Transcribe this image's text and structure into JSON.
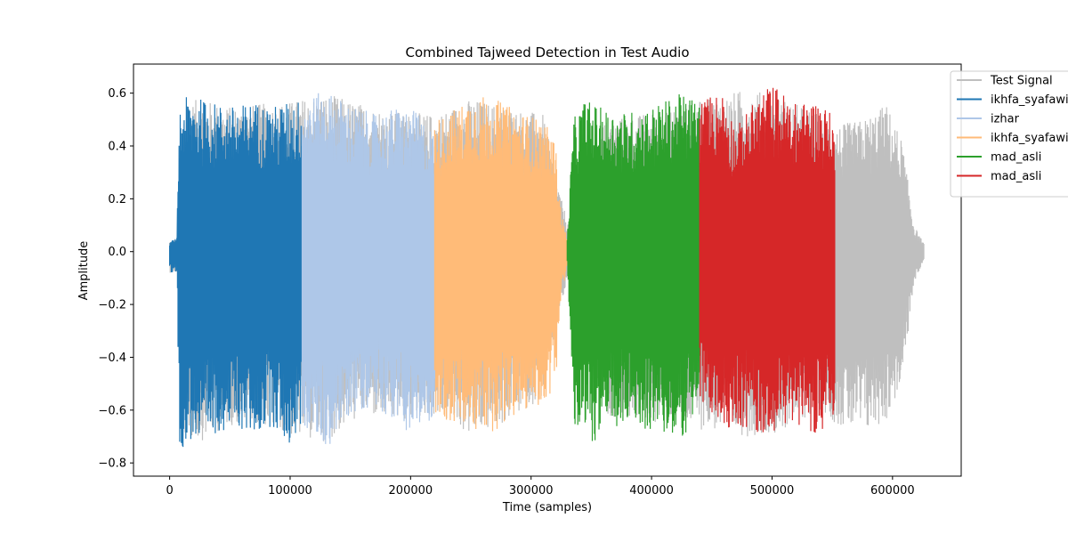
{
  "chart_data": {
    "type": "line",
    "title": "Combined Tajweed Detection in Test Audio",
    "xlabel": "Time (samples)",
    "ylabel": "Amplitude",
    "xlim": [
      -30000,
      657000
    ],
    "ylim": [
      -0.85,
      0.71
    ],
    "xticks": [
      0,
      100000,
      200000,
      300000,
      400000,
      500000,
      600000
    ],
    "xtick_labels": [
      "0",
      "100000",
      "200000",
      "300000",
      "400000",
      "500000",
      "600000"
    ],
    "yticks": [
      -0.8,
      -0.6,
      -0.4,
      -0.2,
      0.0,
      0.2,
      0.4,
      0.6
    ],
    "ytick_labels": [
      "−0.8",
      "−0.6",
      "−0.4",
      "−0.2",
      "0.0",
      "0.2",
      "0.4",
      "0.6"
    ],
    "grid": false,
    "legend_placement": "upper-right (outside)",
    "series": [
      {
        "name": "Test Signal",
        "color": "#bfbfbf",
        "x": [
          0,
          7000,
          12000,
          25000,
          50000,
          75000,
          100000,
          130000,
          160000,
          190000,
          220000,
          250000,
          280000,
          310000,
          325000,
          335000,
          360000,
          390000,
          420000,
          450000,
          480000,
          510000,
          540000,
          555000,
          575000,
          595000,
          608000,
          618000,
          626000
        ],
        "upper": [
          0.04,
          0.05,
          0.56,
          0.58,
          0.55,
          0.56,
          0.57,
          0.6,
          0.56,
          0.53,
          0.52,
          0.58,
          0.55,
          0.52,
          0.2,
          0.05,
          0.5,
          0.52,
          0.55,
          0.58,
          0.62,
          0.58,
          0.52,
          0.48,
          0.5,
          0.56,
          0.42,
          0.1,
          0.03
        ],
        "lower": [
          -0.08,
          -0.08,
          -0.7,
          -0.72,
          -0.66,
          -0.65,
          -0.7,
          -0.72,
          -0.62,
          -0.65,
          -0.62,
          -0.7,
          -0.65,
          -0.55,
          -0.2,
          -0.05,
          -0.62,
          -0.64,
          -0.66,
          -0.68,
          -0.7,
          -0.68,
          -0.6,
          -0.66,
          -0.7,
          -0.64,
          -0.5,
          -0.12,
          -0.03
        ]
      },
      {
        "name": "ikhfa_syafawi",
        "color": "#1f77b4",
        "x_range": [
          0,
          110000
        ],
        "x": [
          0,
          6000,
          8000,
          12000,
          20000,
          26000,
          40000,
          55000,
          70000,
          85000,
          100000,
          110000
        ],
        "upper": [
          0.04,
          0.05,
          0.55,
          0.58,
          0.6,
          0.58,
          0.56,
          0.55,
          0.57,
          0.55,
          0.57,
          0.58
        ],
        "lower": [
          -0.08,
          -0.08,
          -0.72,
          -0.76,
          -0.7,
          -0.78,
          -0.68,
          -0.67,
          -0.7,
          -0.66,
          -0.74,
          -0.66
        ]
      },
      {
        "name": "izhar",
        "color": "#aec7e8",
        "x_range": [
          110000,
          220000
        ],
        "x": [
          110000,
          130000,
          150000,
          170000,
          190000,
          205000,
          220000
        ],
        "upper": [
          0.58,
          0.61,
          0.56,
          0.52,
          0.55,
          0.53,
          0.45
        ],
        "lower": [
          -0.66,
          -0.75,
          -0.62,
          -0.58,
          -0.66,
          -0.7,
          -0.62
        ]
      },
      {
        "name": "ikhfa_syafawi",
        "color": "#ffbb78",
        "x_range": [
          220000,
          330000
        ],
        "x": [
          220000,
          240000,
          252000,
          270000,
          290000,
          310000,
          320000,
          325000,
          330000
        ],
        "upper": [
          0.5,
          0.55,
          0.6,
          0.58,
          0.53,
          0.5,
          0.42,
          0.15,
          0.05
        ],
        "lower": [
          -0.62,
          -0.67,
          -0.69,
          -0.68,
          -0.62,
          -0.58,
          -0.52,
          -0.18,
          -0.05
        ]
      },
      {
        "name": "mad_asli",
        "color": "#2ca02c",
        "x_range": [
          330000,
          440000
        ],
        "x": [
          330000,
          335000,
          345000,
          360000,
          380000,
          400000,
          425000,
          440000
        ],
        "upper": [
          0.05,
          0.5,
          0.58,
          0.54,
          0.53,
          0.55,
          0.6,
          0.58
        ],
        "lower": [
          -0.05,
          -0.66,
          -0.74,
          -0.7,
          -0.66,
          -0.68,
          -0.72,
          -0.58
        ]
      },
      {
        "name": "mad_asli",
        "color": "#d62728",
        "x_range": [
          440000,
          552000
        ],
        "x": [
          440000,
          460000,
          470000,
          490000,
          500000,
          520000,
          540000,
          552000
        ],
        "upper": [
          0.58,
          0.61,
          0.47,
          0.6,
          0.64,
          0.56,
          0.58,
          0.5
        ],
        "lower": [
          -0.58,
          -0.67,
          -0.66,
          -0.7,
          -0.68,
          -0.65,
          -0.7,
          -0.66
        ]
      }
    ]
  }
}
